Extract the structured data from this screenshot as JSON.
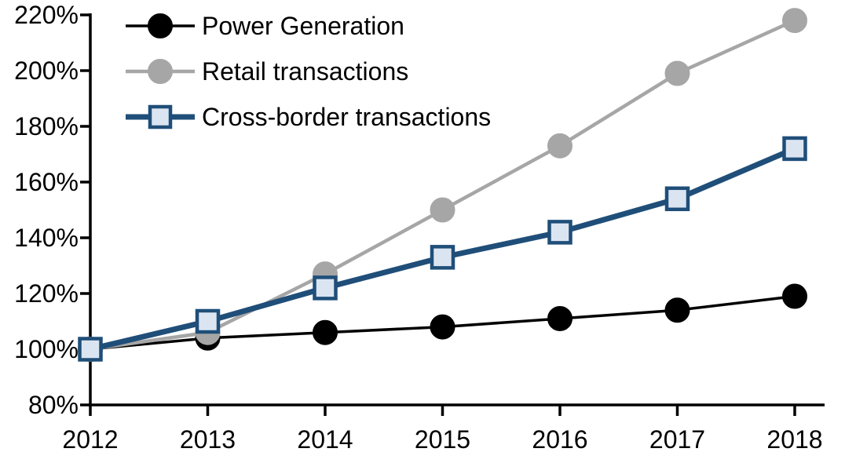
{
  "chart_data": {
    "type": "line",
    "title": "",
    "categories": [
      "2012",
      "2013",
      "2014",
      "2015",
      "2016",
      "2017",
      "2018"
    ],
    "x_axis": {
      "tick_labels": [
        "2012",
        "2013",
        "2014",
        "2015",
        "2016",
        "2017",
        "2018"
      ]
    },
    "y_axis": {
      "min": 80,
      "max": 220,
      "step": 20,
      "unit": "%",
      "tick_labels": [
        "80%",
        "100%",
        "120%",
        "140%",
        "160%",
        "180%",
        "200%",
        "220%"
      ]
    },
    "grid": false,
    "legend_position": "top-left",
    "axis_color": "#000000",
    "text_color": "#000000",
    "background_color": "#ffffff",
    "series": [
      {
        "name": "Power Generation",
        "line_color": "#000000",
        "marker": "circle",
        "marker_fill": "#000000",
        "marker_stroke": "#000000",
        "values": [
          100,
          104,
          106,
          108,
          111,
          114,
          119
        ]
      },
      {
        "name": "Retail transactions",
        "line_color": "#a6a6a6",
        "marker": "circle",
        "marker_fill": "#a6a6a6",
        "marker_stroke": "#a6a6a6",
        "values": [
          100,
          106,
          127,
          150,
          173,
          199,
          218
        ]
      },
      {
        "name": "Cross-border transactions",
        "line_color": "#1f4e79",
        "marker": "square",
        "marker_fill": "#dbe5f1",
        "marker_stroke": "#1f4e79",
        "values": [
          100,
          110,
          122,
          133,
          142,
          154,
          172
        ]
      }
    ]
  }
}
